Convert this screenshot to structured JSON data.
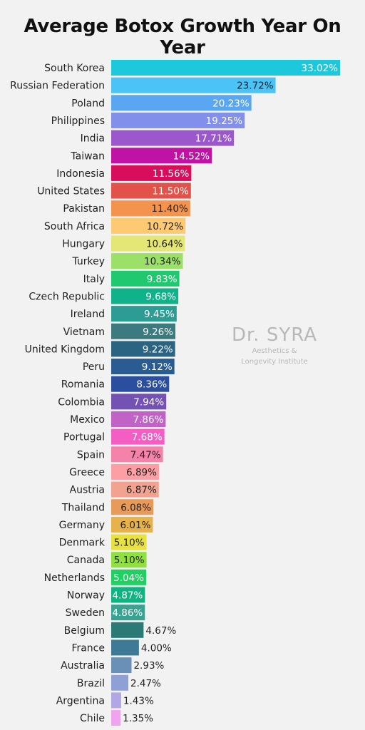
{
  "chart_data": {
    "type": "bar",
    "orientation": "horizontal",
    "title": "Average Botox Growth Year On Year",
    "categories": [
      "South Korea",
      "Russian Federation",
      "Poland",
      "Philippines",
      "India",
      "Taiwan",
      "Indonesia",
      "United States",
      "Pakistan",
      "South Africa",
      "Hungary",
      "Turkey",
      "Italy",
      "Czech Republic",
      "Ireland",
      "Vietnam",
      "United Kingdom",
      "Peru",
      "Romania",
      "Colombia",
      "Mexico",
      "Portugal",
      "Spain",
      "Greece",
      "Austria",
      "Thailand",
      "Germany",
      "Denmark",
      "Canada",
      "Netherlands",
      "Norway",
      "Sweden",
      "Belgium",
      "France",
      "Australia",
      "Brazil",
      "Argentina",
      "Chile"
    ],
    "values": [
      33.02,
      23.72,
      20.23,
      19.25,
      17.71,
      14.52,
      11.56,
      11.5,
      11.4,
      10.72,
      10.64,
      10.34,
      9.83,
      9.68,
      9.45,
      9.26,
      9.22,
      9.12,
      8.36,
      7.94,
      7.86,
      7.68,
      7.47,
      6.89,
      6.87,
      6.08,
      6.01,
      5.1,
      5.1,
      5.04,
      4.87,
      4.86,
      4.67,
      4.0,
      2.93,
      2.47,
      1.43,
      1.35
    ],
    "value_labels": [
      "33.02%",
      "23.72%",
      "20.23%",
      "19.25%",
      "17.71%",
      "14.52%",
      "11.56%",
      "11.50%",
      "11.40%",
      "10.72%",
      "10.64%",
      "10.34%",
      "9.83%",
      "9.68%",
      "9.45%",
      "9.26%",
      "9.22%",
      "9.12%",
      "8.36%",
      "7.94%",
      "7.86%",
      "7.68%",
      "7.47%",
      "6.89%",
      "6.87%",
      "6.08%",
      "6.01%",
      "5.10%",
      "5.10%",
      "5.04%",
      "4.87%",
      "4.86%",
      "4.67%",
      "4.00%",
      "2.93%",
      "2.47%",
      "1.43%",
      "1.35%"
    ],
    "colors": [
      "#1ec8dc",
      "#4cc3f7",
      "#5aa6f2",
      "#8290ec",
      "#9a58cc",
      "#c012a5",
      "#d80e5c",
      "#e2524a",
      "#f3934e",
      "#fdc972",
      "#e4e676",
      "#9ce06a",
      "#20c870",
      "#10b28a",
      "#2c9c94",
      "#3c7a80",
      "#2a6482",
      "#2a5c92",
      "#2c4e9e",
      "#7452b4",
      "#c062c6",
      "#f45ec4",
      "#f582a8",
      "#fc9ea4",
      "#f2a290",
      "#e89a5a",
      "#e8b24a",
      "#e8e240",
      "#90e040",
      "#20d060",
      "#10b480",
      "#3aa290",
      "#2c7a78",
      "#3e7a96",
      "#6a90b6",
      "#8ea0d6",
      "#b2a6e4",
      "#f0a4ee"
    ],
    "xlim": [
      0,
      33.02
    ],
    "grid": false,
    "legend": "none"
  },
  "watermark": {
    "brand": "Dr. SYRA",
    "tagline_1": "Aesthetics &",
    "tagline_2": "Longevity Institute"
  }
}
